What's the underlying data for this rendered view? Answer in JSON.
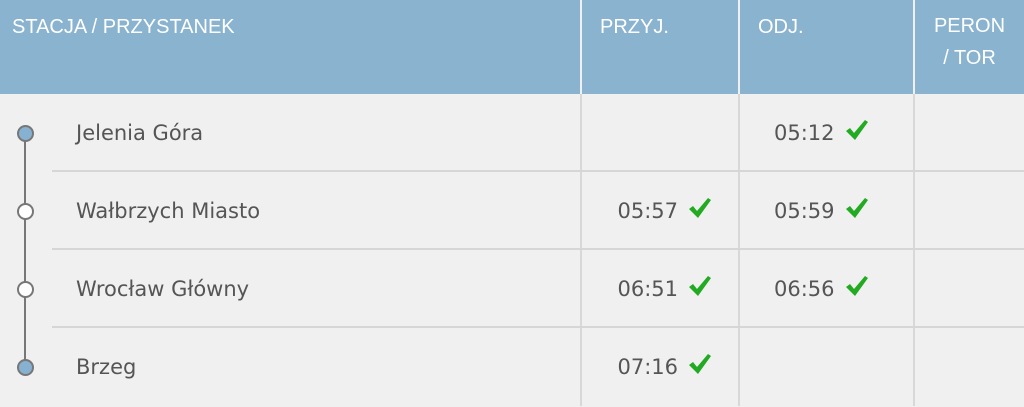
{
  "header": {
    "station": "STACJA / PRZYSTANEK",
    "arrival": "PRZYJ.",
    "departure": "ODJ.",
    "platform_line1": "PERON",
    "platform_line2": "/ TOR"
  },
  "colors": {
    "header_bg": "#8ab3cf",
    "check": "#22aa22",
    "endpoint_dot": "#86b1d0"
  },
  "rows": [
    {
      "station": "Jelenia Góra",
      "arrival": "",
      "departure": "05:12",
      "platform": "",
      "endpoint": true
    },
    {
      "station": "Wałbrzych Miasto",
      "arrival": "05:57",
      "departure": "05:59",
      "platform": "",
      "endpoint": false
    },
    {
      "station": "Wrocław Główny",
      "arrival": "06:51",
      "departure": "06:56",
      "platform": "",
      "endpoint": false
    },
    {
      "station": "Brzeg",
      "arrival": "07:16",
      "departure": "",
      "platform": "",
      "endpoint": true
    }
  ]
}
